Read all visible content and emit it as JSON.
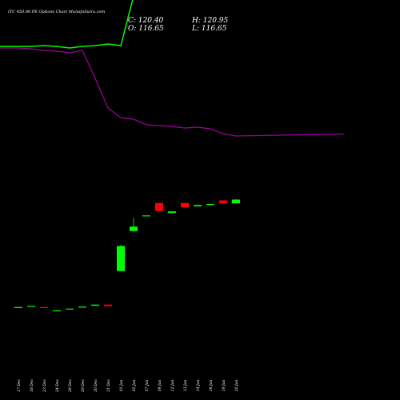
{
  "chart_data": {
    "type": "candlestick",
    "title": "ITC 450.00 PE Options Chart MunafaSutra.com",
    "readout": {
      "close": "C: 120.40",
      "open": "O: 116.65",
      "high": "H: 120.95",
      "low": "L: 116.65"
    },
    "categories": [
      "17 Dec",
      "18 Dec",
      "23 Dec",
      "24 Dec",
      "26 Dec",
      "29 Dec",
      "30 Dec",
      "31 Dec",
      "01 Jan",
      "02 Jan",
      "07 Jan",
      "09 Jan",
      "12 Jan",
      "13 Jan",
      "14 Jan",
      "16 Jan",
      "19 Jan",
      "20 Jan"
    ],
    "colors": {
      "up": "#00ff00",
      "down": "#ff0000",
      "line_green": "#00ff00",
      "line_purple": "#a000a0",
      "background": "#000000"
    },
    "candles": [
      {
        "open": 12.4,
        "close": 13.0,
        "high": 13.0,
        "low": 12.4
      },
      {
        "open": 13.4,
        "close": 14.0,
        "high": 14.0,
        "low": 13.4
      },
      {
        "open": 13.0,
        "close": 12.4,
        "high": 13.0,
        "low": 12.0
      },
      {
        "open": 8.8,
        "close": 9.6,
        "high": 9.6,
        "low": 8.8
      },
      {
        "open": 10.8,
        "close": 11.4,
        "high": 11.4,
        "low": 10.8
      },
      {
        "open": 12.4,
        "close": 13.4,
        "high": 13.4,
        "low": 12.4
      },
      {
        "open": 14.2,
        "close": 15.4,
        "high": 15.4,
        "low": 14.2
      },
      {
        "open": 15.4,
        "close": 13.8,
        "high": 15.4,
        "low": 13.8
      },
      {
        "open": 49.0,
        "close": 74.0,
        "high": 75.0,
        "low": 49.0
      },
      {
        "open": 89.0,
        "close": 93.4,
        "high": 102.0,
        "low": 89.0
      },
      {
        "open": 104.2,
        "close": 104.6,
        "high": 104.6,
        "low": 104.2
      },
      {
        "open": 117.0,
        "close": 109.0,
        "high": 117.0,
        "low": 109.0
      },
      {
        "open": 107.0,
        "close": 108.6,
        "high": 108.6,
        "low": 107.0
      },
      {
        "open": 117.0,
        "close": 112.6,
        "high": 117.0,
        "low": 112.6
      },
      {
        "open": 113.6,
        "close": 115.0,
        "high": 115.0,
        "low": 113.6
      },
      {
        "open": 115.0,
        "close": 116.0,
        "high": 116.0,
        "low": 115.0
      },
      {
        "open": 119.6,
        "close": 116.6,
        "high": 119.6,
        "low": 116.6
      },
      {
        "open": 116.65,
        "close": 120.4,
        "high": 120.95,
        "low": 116.65
      }
    ],
    "green_line": [
      273.6,
      273.6,
      274.4,
      273.6,
      272.0,
      273.6,
      274.4,
      276.0,
      274.4,
      324.0,
      341.6,
      351.2,
      353.6,
      352.8,
      356.0,
      356.0,
      357.6,
      362.4
    ],
    "purple_line": [
      272.0,
      271.2,
      269.6,
      268.8,
      267.2,
      269.6,
      241.6,
      212.0,
      202.4,
      200.8,
      195.2,
      194.4,
      193.6,
      192.0,
      192.8,
      191.2,
      186.4,
      184.0
    ],
    "ylim": [
      0,
      380
    ]
  }
}
